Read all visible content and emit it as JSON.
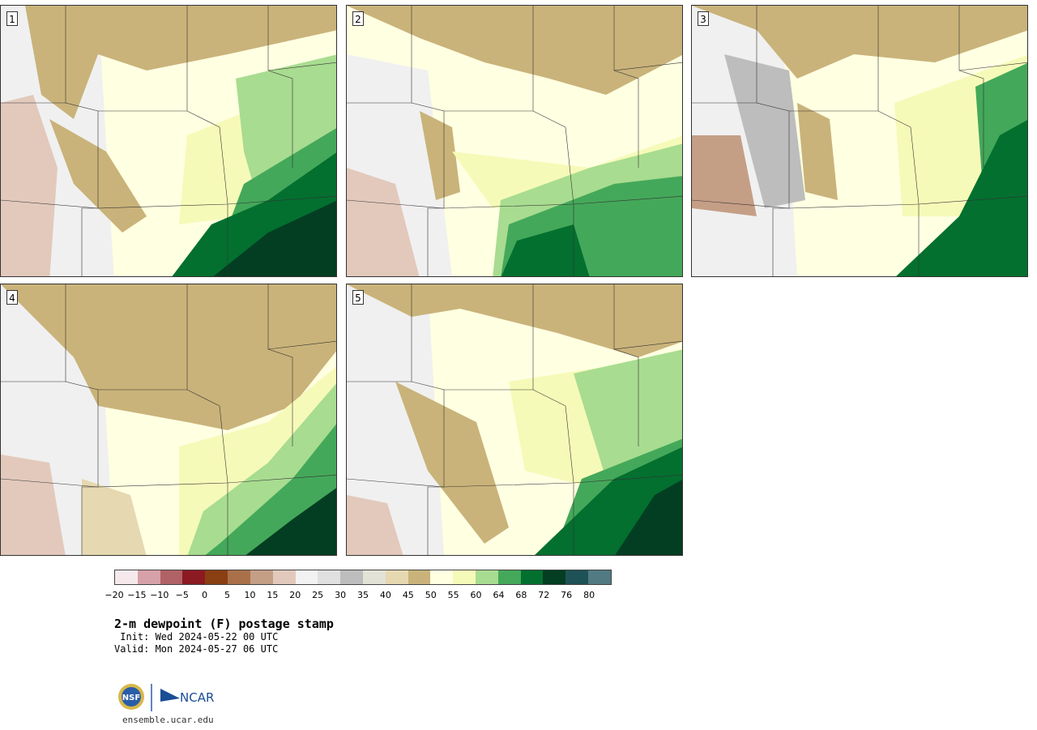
{
  "title": "2-m dewpoint (F) postage stamp",
  "init": " Init: Wed 2024-05-22 00 UTC",
  "valid": "Valid: Mon 2024-05-27 06 UTC",
  "site": "ensemble.ucar.edu",
  "logo": {
    "nsf_text": "NSF",
    "ncar_text": "NCAR"
  },
  "panels": [
    {
      "number": "1"
    },
    {
      "number": "2"
    },
    {
      "number": "3"
    },
    {
      "number": "4"
    },
    {
      "number": "5"
    }
  ],
  "colorbar": {
    "colors": [
      "#f6e9ec",
      "#d6a1a8",
      "#b06266",
      "#8c1a22",
      "#8a3f12",
      "#a9704a",
      "#c59e86",
      "#e2c9bc",
      "#f2f2f2",
      "#e0e0e0",
      "#bdbdbd",
      "#e2e2d6",
      "#e6d8b0",
      "#c9b37a",
      "#ffffe2",
      "#f6fab8",
      "#a8dc90",
      "#44a85a",
      "#03702f",
      "#033e22",
      "#1e5256",
      "#517a82"
    ],
    "tick_labels": [
      "−20",
      "−15",
      "−10",
      "−5",
      "0",
      "5",
      "10",
      "15",
      "20",
      "25",
      "30",
      "35",
      "40",
      "45",
      "50",
      "55",
      "60",
      "64",
      "68",
      "72",
      "76",
      "80"
    ]
  }
}
